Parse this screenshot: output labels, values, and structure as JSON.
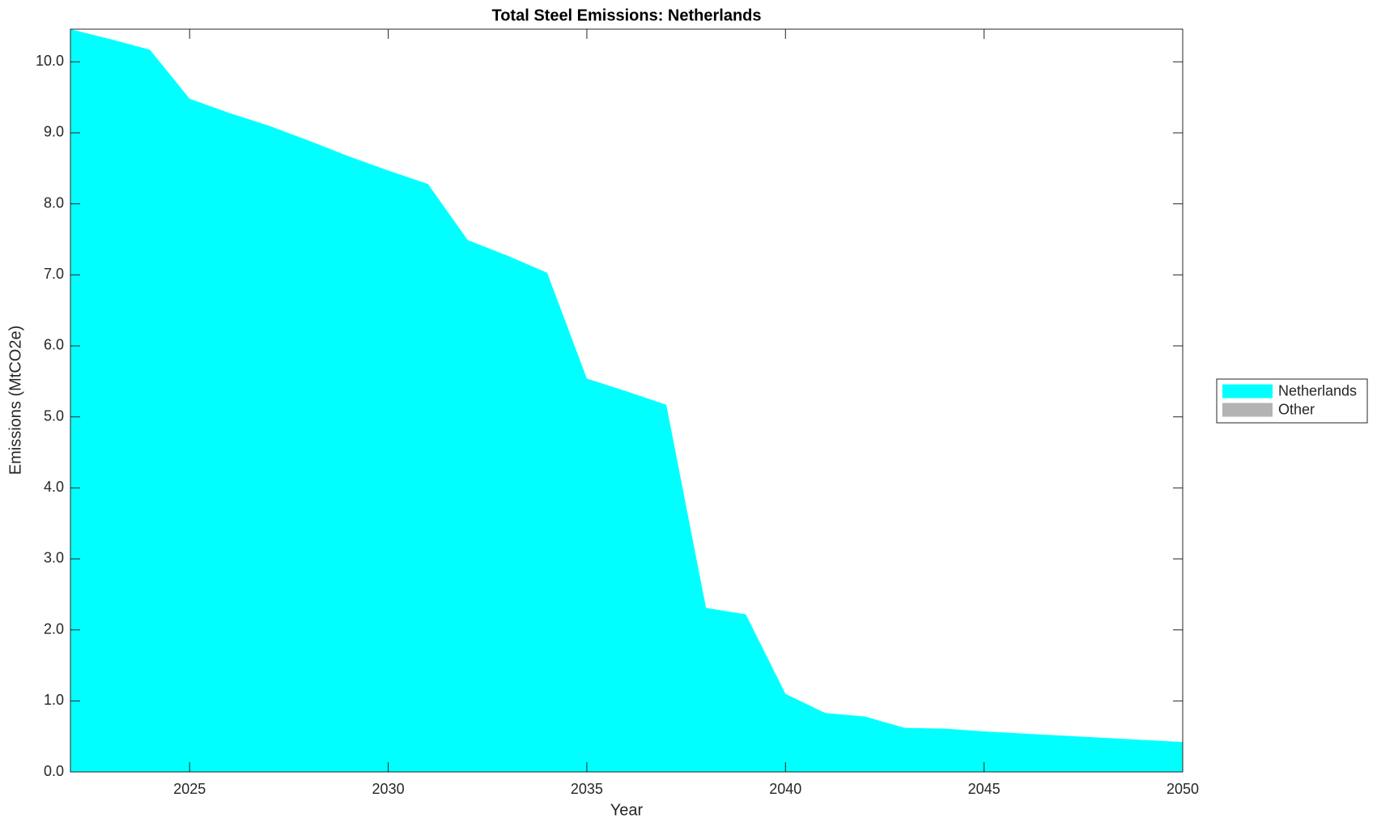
{
  "chart_data": {
    "type": "stacked-area",
    "title": "Total Steel Emissions: Netherlands",
    "xlabel": "Year",
    "ylabel": "Emissions (MtCO2e)",
    "x": [
      2022,
      2023,
      2024,
      2025,
      2026,
      2027,
      2028,
      2029,
      2030,
      2031,
      2032,
      2033,
      2034,
      2035,
      2036,
      2037,
      2038,
      2039,
      2040,
      2041,
      2042,
      2043,
      2044,
      2045,
      2046,
      2047,
      2048,
      2049,
      2050
    ],
    "series": [
      {
        "name": "Netherlands",
        "color": "#00ffff",
        "values": [
          10.46,
          10.32,
          10.17,
          9.48,
          9.28,
          9.1,
          8.89,
          8.67,
          8.47,
          8.28,
          7.49,
          7.27,
          7.03,
          5.54,
          5.36,
          5.17,
          2.31,
          2.22,
          1.1,
          0.83,
          0.78,
          0.62,
          0.61,
          0.57,
          0.54,
          0.51,
          0.48,
          0.45,
          0.42
        ]
      },
      {
        "name": "Other",
        "color": "#b3b3b3",
        "values": [
          0,
          0,
          0,
          0,
          0,
          0,
          0,
          0,
          0,
          0,
          0,
          0,
          0,
          0,
          0,
          0,
          0,
          0,
          0,
          0,
          0,
          0,
          0,
          0,
          0,
          0,
          0,
          0,
          0
        ]
      }
    ],
    "xlim": [
      2022,
      2050
    ],
    "xticks": [
      2025,
      2030,
      2035,
      2040,
      2045,
      2050
    ],
    "ylim": [
      0,
      10.46
    ],
    "yticks": [
      {
        "value": 0,
        "label": "0.0"
      },
      {
        "value": 1,
        "label": "1.0"
      },
      {
        "value": 2,
        "label": "2.0"
      },
      {
        "value": 3,
        "label": "3.0"
      },
      {
        "value": 4,
        "label": "4.0"
      },
      {
        "value": 5,
        "label": "5.0"
      },
      {
        "value": 6,
        "label": "6.0"
      },
      {
        "value": 7,
        "label": "7.0"
      },
      {
        "value": 8,
        "label": "8.0"
      },
      {
        "value": 9,
        "label": "9.0"
      },
      {
        "value": 10,
        "label": "10.0"
      }
    ],
    "grid": false,
    "legend": "outside-right"
  }
}
